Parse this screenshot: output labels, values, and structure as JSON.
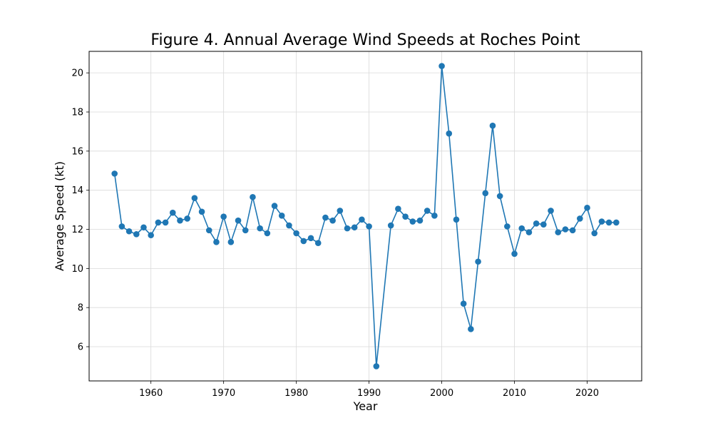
{
  "chart_data": {
    "type": "line",
    "title": "Figure 4. Annual Average Wind Speeds at Roches Point",
    "xlabel": "Year",
    "ylabel": "Average Speed (kt)",
    "xlim": [
      1951.5,
      2027.5
    ],
    "ylim": [
      4.25,
      21.1
    ],
    "xticks": [
      1960,
      1970,
      1980,
      1990,
      2000,
      2010,
      2020
    ],
    "yticks": [
      6,
      8,
      10,
      12,
      14,
      16,
      18,
      20
    ],
    "grid": true,
    "colors": {
      "series": "#1f77b4",
      "grid": "#d9d9d9",
      "axes": "#000000"
    },
    "series": [
      {
        "marker": "circle",
        "x": [
          1955,
          1956,
          1957,
          1958,
          1959,
          1960,
          1961,
          1962,
          1963,
          1964,
          1965,
          1966,
          1967,
          1968,
          1969,
          1970,
          1971,
          1972,
          1973,
          1974,
          1975,
          1976,
          1977,
          1978,
          1979,
          1980,
          1981,
          1982,
          1983,
          1984,
          1985,
          1986,
          1987,
          1988,
          1989,
          1990,
          1991,
          1993,
          1994,
          1995,
          1996,
          1997,
          1998,
          1999,
          2000,
          2001,
          2002,
          2003,
          2004,
          2005,
          2006,
          2007,
          2008,
          2009,
          2010,
          2011,
          2012,
          2013,
          2014,
          2015,
          2016,
          2017,
          2018,
          2019,
          2020,
          2021,
          2022,
          2023,
          2024
        ],
        "y": [
          14.85,
          12.15,
          11.9,
          11.75,
          12.1,
          11.7,
          12.35,
          12.35,
          12.85,
          12.45,
          12.55,
          13.6,
          12.9,
          11.95,
          11.35,
          12.65,
          11.35,
          12.45,
          11.95,
          13.65,
          12.05,
          11.8,
          13.2,
          12.7,
          12.2,
          11.8,
          11.4,
          11.55,
          11.3,
          12.6,
          12.45,
          12.95,
          12.05,
          12.1,
          12.5,
          12.15,
          5.0,
          12.2,
          13.05,
          12.65,
          12.4,
          12.45,
          12.95,
          12.7,
          20.35,
          16.9,
          12.5,
          8.2,
          6.9,
          10.35,
          13.85,
          17.3,
          13.7,
          12.15,
          10.75,
          12.05,
          11.85,
          12.3,
          12.25,
          12.95,
          11.85,
          12.0,
          11.95,
          12.55,
          13.1,
          11.8,
          12.4,
          12.35,
          12.35
        ]
      }
    ]
  }
}
